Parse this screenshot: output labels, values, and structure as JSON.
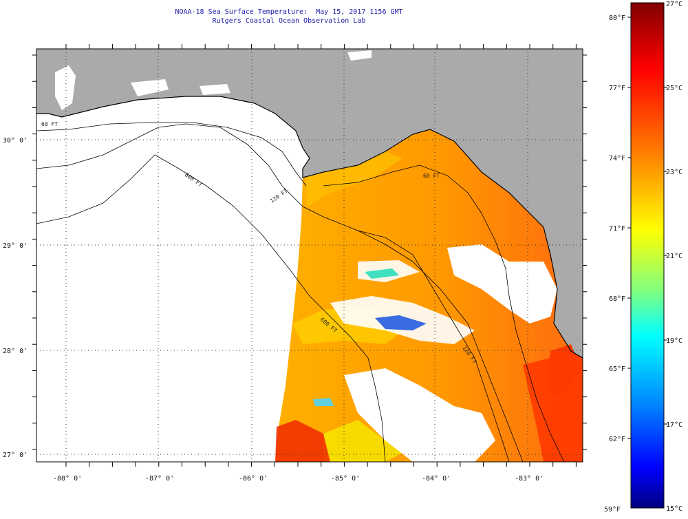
{
  "header": {
    "title": "NOAA-18 Sea Surface Temperature:  May 15, 2017 1156 GMT",
    "subtitle": "Rutgers Coastal Ocean Observation Lab"
  },
  "map": {
    "lat_labels": [
      "30° 0'",
      "29° 0'",
      "28° 0'",
      "27° 0'"
    ],
    "lon_labels": [
      "-88° 0'",
      "-87° 0'",
      "-86° 0'",
      "-85° 0'",
      "-84° 0'",
      "-83° 0'"
    ],
    "isobath_labels": [
      "60 FT",
      "120 FT",
      "600 FT",
      "600 FT",
      "60 FT",
      "120 FT"
    ],
    "colors": {
      "land": "#aaaaaa",
      "cloud": "#ffffff",
      "grid": "#333333"
    }
  },
  "colorbar": {
    "fahrenheit_labels": [
      "80°F",
      "77°F",
      "74°F",
      "71°F",
      "68°F",
      "65°F",
      "62°F",
      "59°F"
    ],
    "celsius_labels": [
      "27°C",
      "25°C",
      "23°C",
      "21°C",
      "19°C",
      "17°C",
      "15°C"
    ],
    "gradient_colors": [
      "#800000",
      "#ff0000",
      "#ff8000",
      "#ffff00",
      "#80ff80",
      "#00ffff",
      "#0080ff",
      "#0000ff",
      "#000080"
    ]
  }
}
